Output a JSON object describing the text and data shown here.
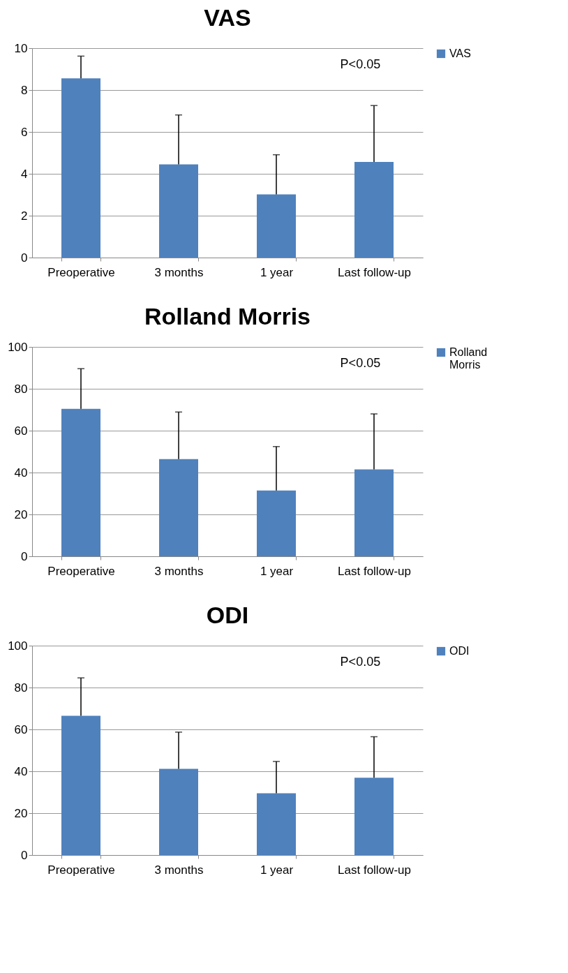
{
  "chart_data": [
    {
      "type": "bar",
      "title": "VAS",
      "categories": [
        "Preoperative",
        "3 months",
        "1 year",
        "Last follow-up"
      ],
      "series": [
        {
          "name": "VAS",
          "color": "#4f81bd",
          "values": [
            8.56,
            4.45,
            3.02,
            4.57
          ],
          "errors": [
            [
              8.56,
              9.62
            ],
            [
              4.45,
              6.81
            ],
            [
              3.02,
              4.91
            ],
            [
              4.57,
              7.26
            ]
          ]
        }
      ],
      "ylim": [
        0,
        10
      ],
      "yticks": [
        0,
        2,
        4,
        6,
        8,
        10
      ],
      "grid": "y",
      "legend": "right",
      "annotations": [
        "P<0.05"
      ]
    },
    {
      "type": "bar",
      "title": "Rolland Morris",
      "categories": [
        "Preoperative",
        "3 months",
        "1 year",
        "Last follow-up"
      ],
      "series": [
        {
          "name": "Rolland Morris",
          "color": "#4f81bd",
          "values": [
            70.4,
            46.4,
            31.4,
            41.5
          ],
          "errors": [
            [
              70.4,
              89.6
            ],
            [
              46.4,
              68.9
            ],
            [
              31.4,
              52.4
            ],
            [
              41.5,
              68.0
            ]
          ]
        }
      ],
      "ylim": [
        0,
        100
      ],
      "yticks": [
        0,
        20,
        40,
        60,
        80,
        100
      ],
      "grid": "y",
      "legend": "right",
      "annotations": [
        "P<0.05"
      ]
    },
    {
      "type": "bar",
      "title": "ODI",
      "categories": [
        "Preoperative",
        "3 months",
        "1 year",
        "Last follow-up"
      ],
      "series": [
        {
          "name": "ODI",
          "color": "#4f81bd",
          "values": [
            66.5,
            41.2,
            29.5,
            36.9
          ],
          "errors": [
            [
              66.5,
              84.6
            ],
            [
              41.2,
              58.7
            ],
            [
              29.5,
              44.7
            ],
            [
              36.9,
              56.5
            ]
          ]
        }
      ],
      "ylim": [
        0,
        100
      ],
      "yticks": [
        0,
        20,
        40,
        60,
        80,
        100
      ],
      "grid": "y",
      "legend": "right",
      "annotations": [
        "P<0.05"
      ]
    }
  ]
}
